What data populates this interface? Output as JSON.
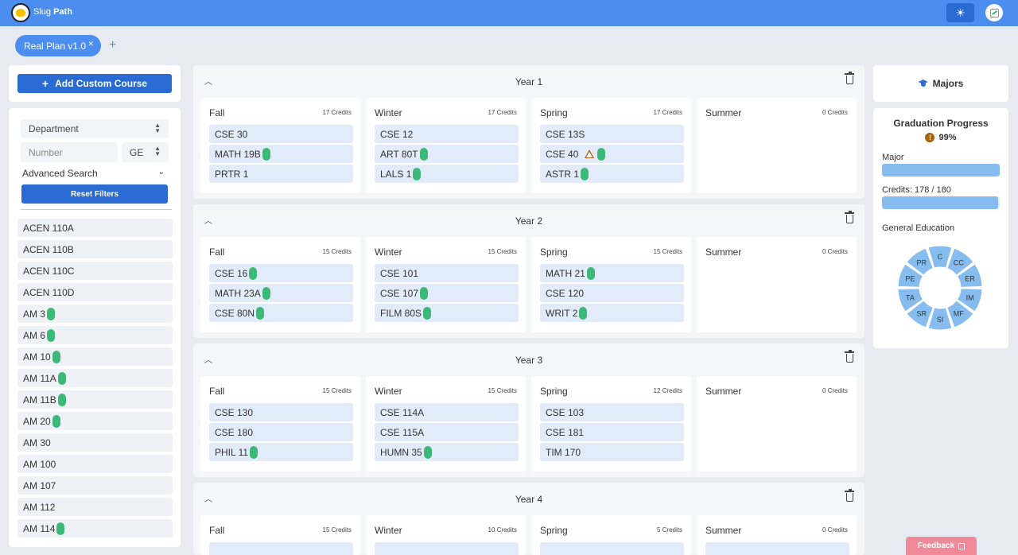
{
  "header": {
    "brand_light": "Slug",
    "brand_bold": "Path"
  },
  "plan_tabs": [
    {
      "label": "Real Plan v1.0"
    }
  ],
  "plan_add_label": "+",
  "left": {
    "add_course_label": "Add Custom Course",
    "department_select": "Department",
    "number_placeholder": "Number",
    "ge_select": "GE",
    "advanced_search_label": "Advanced Search",
    "reset_filters_label": "Reset Filters",
    "courses": [
      {
        "code": "ACEN 110A",
        "ge": false
      },
      {
        "code": "ACEN 110B",
        "ge": false
      },
      {
        "code": "ACEN 110C",
        "ge": false
      },
      {
        "code": "ACEN 110D",
        "ge": false
      },
      {
        "code": "AM 3",
        "ge": true
      },
      {
        "code": "AM 6",
        "ge": true
      },
      {
        "code": "AM 10",
        "ge": true
      },
      {
        "code": "AM 11A",
        "ge": true
      },
      {
        "code": "AM 11B",
        "ge": true
      },
      {
        "code": "AM 20",
        "ge": true
      },
      {
        "code": "AM 30",
        "ge": false
      },
      {
        "code": "AM 100",
        "ge": false
      },
      {
        "code": "AM 107",
        "ge": false
      },
      {
        "code": "AM 112",
        "ge": false
      },
      {
        "code": "AM 114",
        "ge": true
      }
    ]
  },
  "years": [
    {
      "title": "Year 1",
      "quarters": [
        {
          "name": "Fall",
          "credits": "17 Credits",
          "courses": [
            {
              "code": "CSE 30",
              "ge": false
            },
            {
              "code": "MATH 19B",
              "ge": true
            },
            {
              "code": "PRTR 1",
              "ge": false
            }
          ]
        },
        {
          "name": "Winter",
          "credits": "17 Credits",
          "courses": [
            {
              "code": "CSE 12",
              "ge": false
            },
            {
              "code": "ART 80T",
              "ge": true
            },
            {
              "code": "LALS 1",
              "ge": true
            }
          ]
        },
        {
          "name": "Spring",
          "credits": "17 Credits",
          "courses": [
            {
              "code": "CSE 13S",
              "ge": false
            },
            {
              "code": "CSE 40",
              "ge": true,
              "warning": true
            },
            {
              "code": "ASTR 1",
              "ge": true
            }
          ]
        },
        {
          "name": "Summer",
          "credits": "0 Credits",
          "courses": []
        }
      ]
    },
    {
      "title": "Year 2",
      "quarters": [
        {
          "name": "Fall",
          "credits": "15 Credits",
          "courses": [
            {
              "code": "CSE 16",
              "ge": true
            },
            {
              "code": "MATH 23A",
              "ge": true
            },
            {
              "code": "CSE 80N",
              "ge": true
            }
          ]
        },
        {
          "name": "Winter",
          "credits": "15 Credits",
          "courses": [
            {
              "code": "CSE 101",
              "ge": false
            },
            {
              "code": "CSE 107",
              "ge": true
            },
            {
              "code": "FILM 80S",
              "ge": true
            }
          ]
        },
        {
          "name": "Spring",
          "credits": "15 Credits",
          "courses": [
            {
              "code": "MATH 21",
              "ge": true
            },
            {
              "code": "CSE 120",
              "ge": false
            },
            {
              "code": "WRIT 2",
              "ge": true
            }
          ]
        },
        {
          "name": "Summer",
          "credits": "0 Credits",
          "courses": []
        }
      ]
    },
    {
      "title": "Year 3",
      "quarters": [
        {
          "name": "Fall",
          "credits": "15 Credits",
          "courses": [
            {
              "code": "CSE 130",
              "ge": false
            },
            {
              "code": "CSE 180",
              "ge": false
            },
            {
              "code": "PHIL 11",
              "ge": true
            }
          ]
        },
        {
          "name": "Winter",
          "credits": "15 Credits",
          "courses": [
            {
              "code": "CSE 114A",
              "ge": false
            },
            {
              "code": "CSE 115A",
              "ge": false
            },
            {
              "code": "HUMN 35",
              "ge": true
            }
          ]
        },
        {
          "name": "Spring",
          "credits": "12 Credits",
          "courses": [
            {
              "code": "CSE 103",
              "ge": false
            },
            {
              "code": "CSE 181",
              "ge": false
            },
            {
              "code": "TIM 170",
              "ge": false
            }
          ]
        },
        {
          "name": "Summer",
          "credits": "0 Credits",
          "courses": []
        }
      ]
    },
    {
      "title": "Year 4",
      "quarters": [
        {
          "name": "Fall",
          "credits": "15 Credits",
          "courses": []
        },
        {
          "name": "Winter",
          "credits": "10 Credits",
          "courses": []
        },
        {
          "name": "Spring",
          "credits": "5 Credits",
          "courses": []
        },
        {
          "name": "Summer",
          "credits": "0 Credits",
          "courses": []
        }
      ]
    }
  ],
  "right": {
    "majors_label": "Majors",
    "grad_title": "Graduation Progress",
    "grad_percent": "99%",
    "major_label": "Major",
    "major_progress": 1.0,
    "credits_label": "Credits: 178 / 180",
    "credits_progress": 0.989,
    "ge_label": "General Education",
    "ge_segments": [
      "C",
      "CC",
      "ER",
      "IM",
      "MF",
      "SI",
      "SR",
      "TA",
      "PE",
      "PR"
    ]
  },
  "feedback_label": "Feedback",
  "colors": {
    "primary": "#4c8ef0",
    "button": "#2a6ad3",
    "ge_badge": "#3cb878",
    "warning": "#b5631c",
    "progress": "#86bdee",
    "feedback": "#f08a99"
  }
}
